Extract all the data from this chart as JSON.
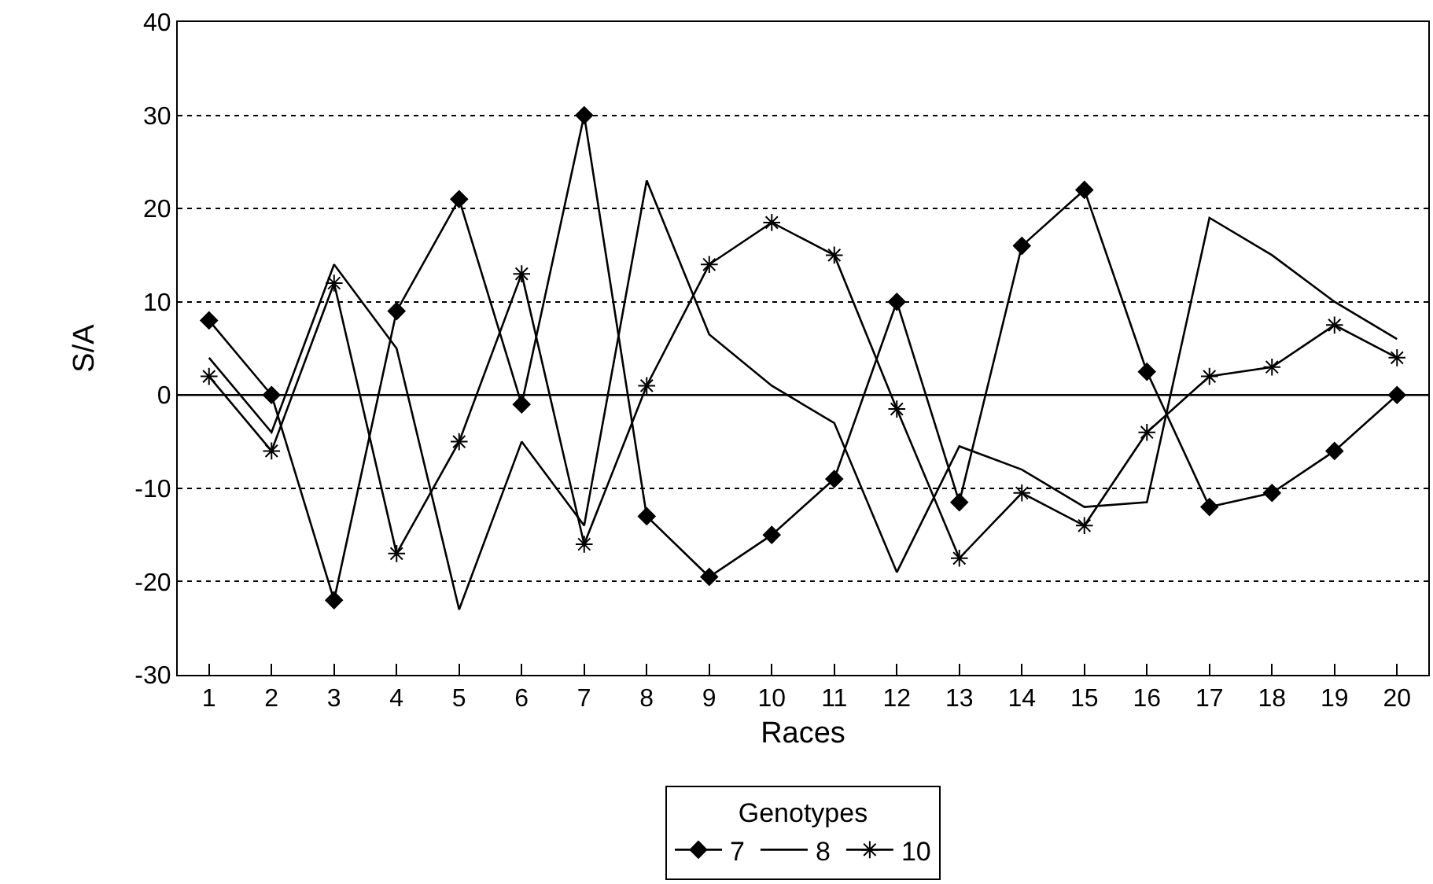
{
  "chart_data": {
    "type": "line",
    "xlabel": "Races",
    "ylabel": "S/A",
    "legend_title": "Genotypes",
    "legend": "bottom",
    "grid": "y",
    "line_style": "solid",
    "x": [
      1,
      2,
      3,
      4,
      5,
      6,
      7,
      8,
      9,
      10,
      11,
      12,
      13,
      14,
      15,
      16,
      17,
      18,
      19,
      20
    ],
    "xlim": [
      0.5,
      20.5
    ],
    "xticks": [
      1,
      2,
      3,
      4,
      5,
      6,
      7,
      8,
      9,
      10,
      11,
      12,
      13,
      14,
      15,
      16,
      17,
      18,
      19,
      20
    ],
    "ylim": [
      -30,
      40
    ],
    "yticks": [
      -30,
      -20,
      -10,
      0,
      10,
      20,
      30,
      40
    ],
    "ref_lines": [
      {
        "axis": "y",
        "value": 0,
        "color": "#000000",
        "line_style": "solid"
      }
    ],
    "series": [
      {
        "name": "7",
        "color": "#000000",
        "marker": "diamond",
        "values": [
          8,
          0,
          -22,
          9,
          21,
          -1,
          30,
          -13,
          -19.5,
          -15,
          -9,
          10,
          -11.5,
          16,
          22,
          2.5,
          -12,
          -10.5,
          -6,
          0
        ]
      },
      {
        "name": "8",
        "color": "#000000",
        "marker": "none",
        "values": [
          4,
          -4,
          14,
          5,
          -23,
          -5,
          -14,
          23,
          6.5,
          1,
          -3,
          -19,
          -5.5,
          -8,
          -12,
          -11.5,
          19,
          15,
          10,
          6
        ]
      },
      {
        "name": "10",
        "color": "#000000",
        "marker": "cross",
        "values": [
          2,
          -6,
          12,
          -17,
          -5,
          13,
          -16,
          1,
          14,
          18.5,
          15,
          -1.5,
          -17.5,
          -10.5,
          -14,
          -4,
          2,
          3,
          7.5,
          4
        ]
      }
    ]
  }
}
